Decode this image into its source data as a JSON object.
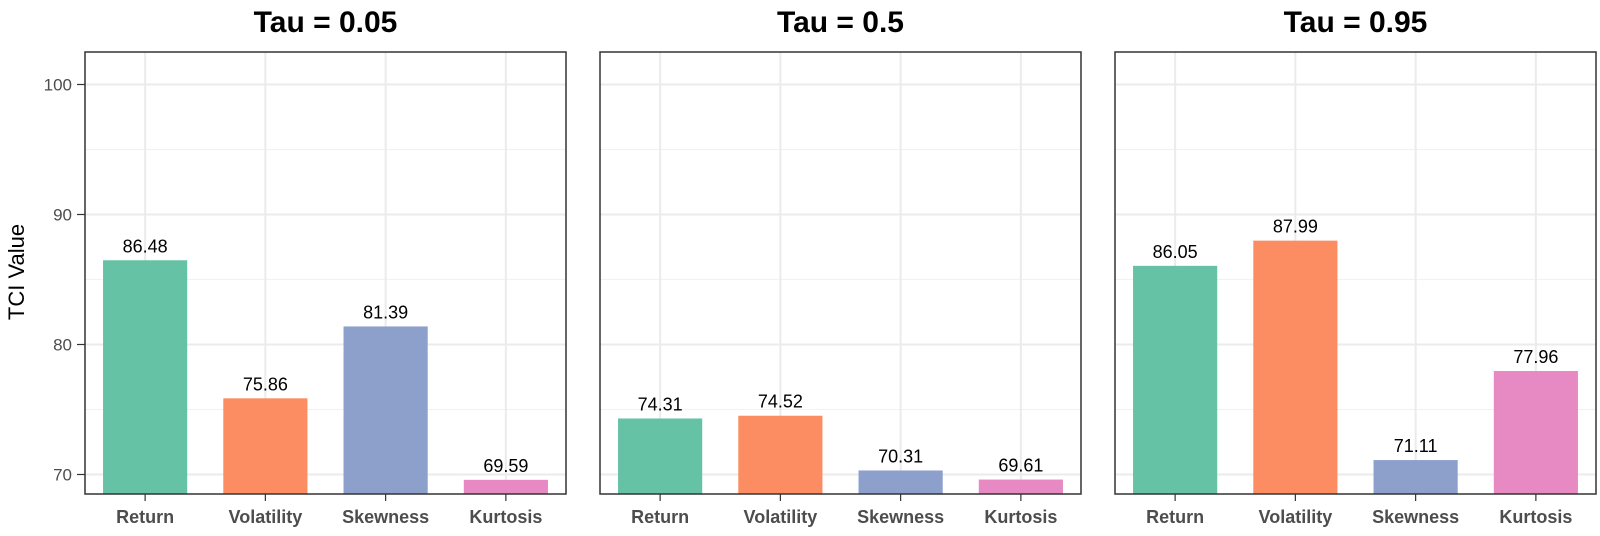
{
  "chart_data": {
    "type": "bar",
    "ylabel": "TCI Value",
    "ylim": [
      68.5,
      102.5
    ],
    "yticks": [
      70,
      80,
      90,
      100
    ],
    "grid": true,
    "categories": [
      "Return",
      "Volatility",
      "Skewness",
      "Kurtosis"
    ],
    "colors": [
      "#66c2a5",
      "#fc8d62",
      "#8da0cb",
      "#e78ac3"
    ],
    "panels": [
      {
        "title": "Tau = 0.05",
        "values": [
          86.48,
          75.86,
          81.39,
          69.59
        ],
        "labels": [
          "86.48",
          "75.86",
          "81.39",
          "69.59"
        ]
      },
      {
        "title": "Tau = 0.5",
        "values": [
          74.31,
          74.52,
          70.31,
          69.61
        ],
        "labels": [
          "74.31",
          "74.52",
          "70.31",
          "69.61"
        ]
      },
      {
        "title": "Tau = 0.95",
        "values": [
          86.05,
          87.99,
          71.11,
          77.96
        ],
        "labels": [
          "86.05",
          "87.99",
          "71.11",
          "77.96"
        ]
      }
    ]
  }
}
